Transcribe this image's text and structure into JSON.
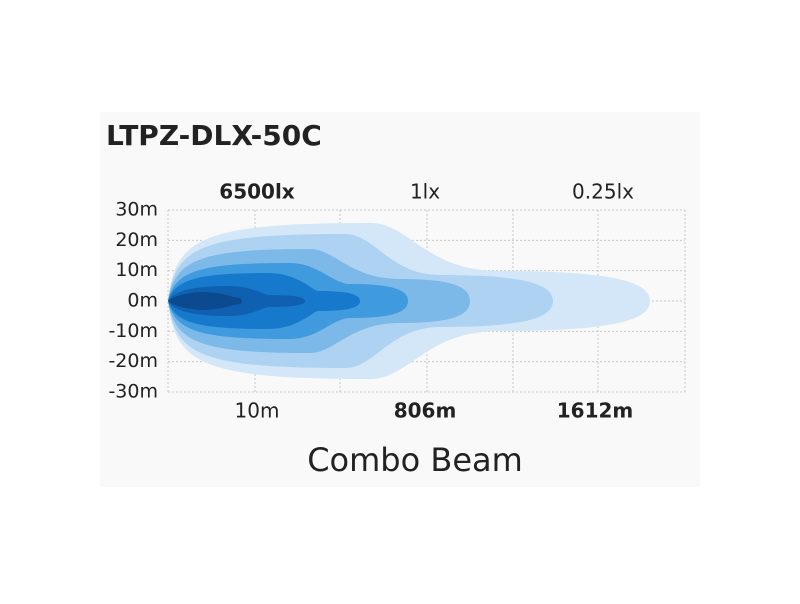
{
  "title": "LTPZ-DLX-50C",
  "y_labels": [
    "30m",
    "20m",
    "10m",
    "0m",
    "-10m",
    "-20m",
    "-30m"
  ],
  "top_labels": [
    "6500lx",
    "1lx",
    "0.25lx"
  ],
  "bottom_labels": [
    "10m",
    "806m",
    "1612m"
  ],
  "caption": "Combo Beam"
}
